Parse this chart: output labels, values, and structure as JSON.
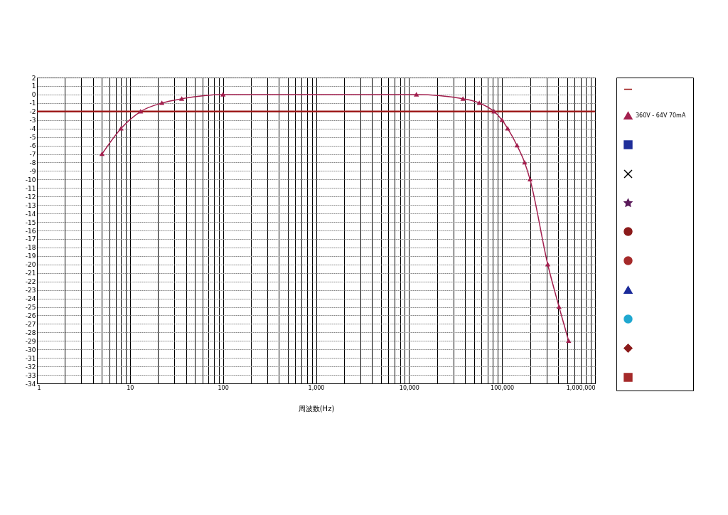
{
  "chart_data": {
    "type": "line",
    "xlabel": "周波数(Hz)",
    "log": "x",
    "grid": true,
    "legend": "right",
    "xlim": [
      1,
      1000000
    ],
    "xticks": [
      {
        "value": 1,
        "label": "1"
      },
      {
        "value": 2,
        "label": null
      },
      {
        "value": 3,
        "label": null
      },
      {
        "value": 4,
        "label": null
      },
      {
        "value": 5,
        "label": null
      },
      {
        "value": 6,
        "label": null
      },
      {
        "value": 7,
        "label": null
      },
      {
        "value": 8,
        "label": null
      },
      {
        "value": 9,
        "label": null
      },
      {
        "value": 10,
        "label": "10"
      },
      {
        "value": 20,
        "label": null
      },
      {
        "value": 30,
        "label": null
      },
      {
        "value": 40,
        "label": null
      },
      {
        "value": 50,
        "label": null
      },
      {
        "value": 60,
        "label": null
      },
      {
        "value": 70,
        "label": null
      },
      {
        "value": 80,
        "label": null
      },
      {
        "value": 90,
        "label": null
      },
      {
        "value": 100,
        "label": "100"
      },
      {
        "value": 200,
        "label": null
      },
      {
        "value": 300,
        "label": null
      },
      {
        "value": 400,
        "label": null
      },
      {
        "value": 500,
        "label": null
      },
      {
        "value": 600,
        "label": null
      },
      {
        "value": 700,
        "label": null
      },
      {
        "value": 800,
        "label": null
      },
      {
        "value": 900,
        "label": null
      },
      {
        "value": 1000,
        "label": "1,000"
      },
      {
        "value": 2000,
        "label": null
      },
      {
        "value": 3000,
        "label": null
      },
      {
        "value": 4000,
        "label": null
      },
      {
        "value": 5000,
        "label": null
      },
      {
        "value": 6000,
        "label": null
      },
      {
        "value": 7000,
        "label": null
      },
      {
        "value": 8000,
        "label": null
      },
      {
        "value": 9000,
        "label": null
      },
      {
        "value": 10000,
        "label": "10,000"
      },
      {
        "value": 20000,
        "label": null
      },
      {
        "value": 30000,
        "label": null
      },
      {
        "value": 40000,
        "label": null
      },
      {
        "value": 50000,
        "label": null
      },
      {
        "value": 60000,
        "label": null
      },
      {
        "value": 70000,
        "label": null
      },
      {
        "value": 80000,
        "label": null
      },
      {
        "value": 90000,
        "label": null
      },
      {
        "value": 100000,
        "label": "100,000"
      },
      {
        "value": 200000,
        "label": null
      },
      {
        "value": 300000,
        "label": null
      },
      {
        "value": 400000,
        "label": null
      },
      {
        "value": 500000,
        "label": null
      },
      {
        "value": 600000,
        "label": null
      },
      {
        "value": 700000,
        "label": null
      },
      {
        "value": 800000,
        "label": null
      },
      {
        "value": 900000,
        "label": null
      },
      {
        "value": 1000000,
        "label": "1,000,000"
      }
    ],
    "ylim": [
      -34,
      2
    ],
    "yticks": [
      2,
      1,
      0,
      -1,
      -2,
      -3,
      -4,
      -5,
      -6,
      -7,
      -8,
      -9,
      -10,
      -11,
      -12,
      -13,
      -14,
      -15,
      -16,
      -17,
      -18,
      -19,
      -20,
      -21,
      -22,
      -23,
      -24,
      -25,
      -26,
      -27,
      -28,
      -29,
      -30,
      -31,
      -32,
      -33,
      -34
    ],
    "series": [
      {
        "color": "#9e1a1a",
        "marker": "none",
        "x": [
          1,
          1000000
        ],
        "values": [
          -2,
          -2
        ]
      },
      {
        "name": "360V - 64V 70mA",
        "color": "#a3204f",
        "marker": "triangle",
        "x": [
          5,
          8,
          13,
          22,
          36,
          100,
          12000,
          38000,
          57000,
          82000,
          100000,
          115000,
          145000,
          175000,
          200000,
          310000,
          410000,
          520000
        ],
        "values": [
          -7,
          -4,
          -2,
          -1,
          -0.5,
          0,
          0,
          -0.5,
          -1,
          -2,
          -3,
          -4,
          -6,
          -8,
          -10,
          -20,
          -25,
          -29
        ]
      },
      {
        "color": "#1f2f9a",
        "marker": "square"
      },
      {
        "color": "#000000",
        "marker": "cross"
      },
      {
        "color": "#5a1a5a",
        "marker": "star"
      },
      {
        "color": "#8b1a1a",
        "marker": "circle"
      },
      {
        "color": "#a52a2a",
        "marker": "circle"
      },
      {
        "color": "#1a2a9a",
        "marker": "triangle"
      },
      {
        "color": "#20a8d0",
        "marker": "circle"
      },
      {
        "color": "#8b1a1a",
        "marker": "diamond"
      },
      {
        "color": "#a52a2a",
        "marker": "square"
      }
    ]
  }
}
